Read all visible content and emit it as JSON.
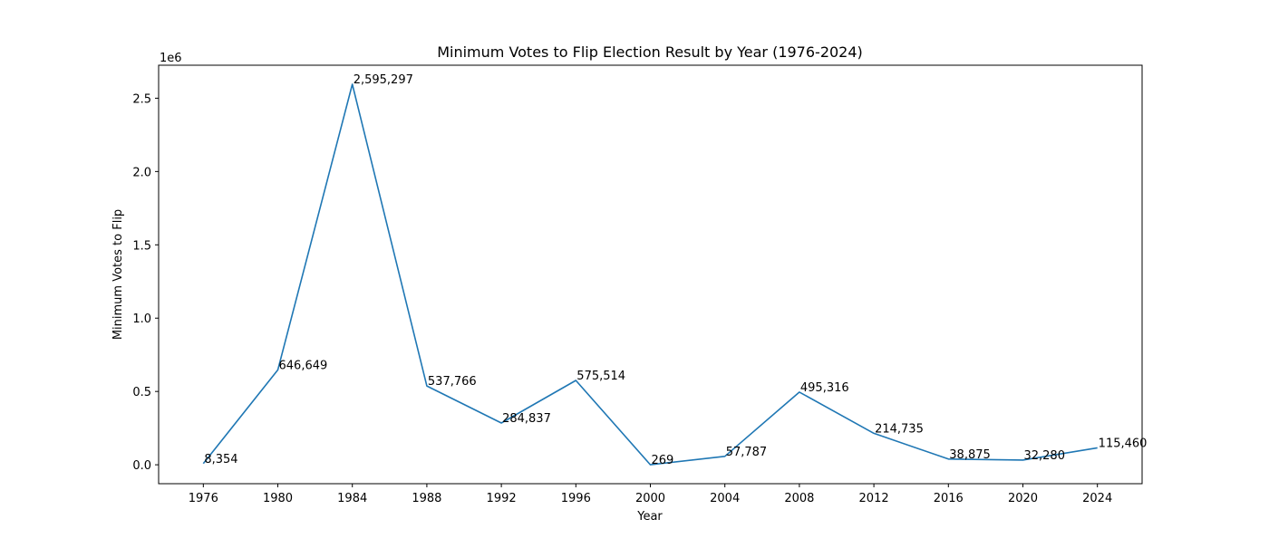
{
  "chart_data": {
    "type": "line",
    "title": "Minimum Votes to Flip Election Result by Year (1976-2024)",
    "xlabel": "Year",
    "ylabel": "Minimum Votes to Flip",
    "y_offset_label": "1e6",
    "x_ticks": [
      "1976",
      "1980",
      "1984",
      "1988",
      "1992",
      "1996",
      "2000",
      "2004",
      "2008",
      "2012",
      "2016",
      "2020",
      "2024"
    ],
    "y_ticks": [
      "0.0",
      "0.5",
      "1.0",
      "1.5",
      "2.0",
      "2.5"
    ],
    "y_tick_values": [
      0,
      500000,
      1000000,
      1500000,
      2000000,
      2500000
    ],
    "xlim": [
      1973.6,
      2026.4
    ],
    "ylim": [
      -129000,
      2725000
    ],
    "grid": false,
    "line_color": "#1f77b4",
    "series": [
      {
        "x": [
          1976,
          1980,
          1984,
          1988,
          1992,
          1996,
          2000,
          2004,
          2008,
          2012,
          2016,
          2020,
          2024
        ],
        "values": [
          8354,
          646649,
          2595297,
          537766,
          284837,
          575514,
          269,
          57787,
          495316,
          214735,
          38875,
          32280,
          115460
        ],
        "labels": [
          "8,354",
          "646,649",
          "2,595,297",
          "537,766",
          "284,837",
          "575,514",
          "269",
          "57,787",
          "495,316",
          "214,735",
          "38,875",
          "32,280",
          "115,460"
        ]
      }
    ]
  }
}
